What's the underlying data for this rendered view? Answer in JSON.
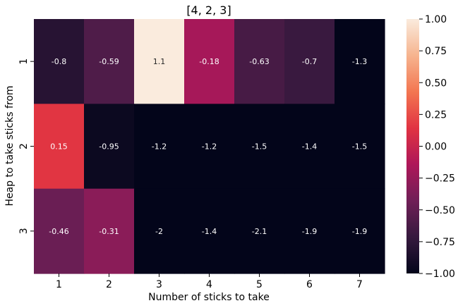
{
  "chart_data": {
    "type": "heatmap",
    "title": "[4, 2, 3]",
    "xlabel": "Number of sticks to take",
    "ylabel": "Heap to take sticks from",
    "x_categories": [
      "1",
      "2",
      "3",
      "4",
      "5",
      "6",
      "7"
    ],
    "y_categories": [
      "1",
      "2",
      "3"
    ],
    "values": [
      [
        -0.8,
        -0.59,
        1.1,
        -0.18,
        -0.63,
        -0.7,
        -1.3
      ],
      [
        0.15,
        -0.95,
        -1.2,
        -1.2,
        -1.5,
        -1.4,
        -1.5
      ],
      [
        -0.46,
        -0.31,
        -2,
        -1.4,
        -2.1,
        -1.9,
        -1.9
      ]
    ],
    "annotations": [
      [
        "-0.8",
        "-0.59",
        "1.1",
        "-0.18",
        "-0.63",
        "-0.7",
        "-1.3"
      ],
      [
        "0.15",
        "-0.95",
        "-1.2",
        "-1.2",
        "-1.5",
        "-1.4",
        "-1.5"
      ],
      [
        "-0.46",
        "-0.31",
        "-2",
        "-1.4",
        "-2.1",
        "-1.9",
        "-1.9"
      ]
    ],
    "colorbar": {
      "range": [
        -1,
        1
      ],
      "ticks": [
        "1.00",
        "0.75",
        "0.50",
        "0.25",
        "0.00",
        "−0.25",
        "−0.50",
        "−0.75",
        "−1.00"
      ]
    },
    "colormap": [
      "#03051a",
      "#36193e",
      "#701f57",
      "#ae1759",
      "#e13342",
      "#f37651",
      "#f6b48f",
      "#faebdd"
    ]
  }
}
